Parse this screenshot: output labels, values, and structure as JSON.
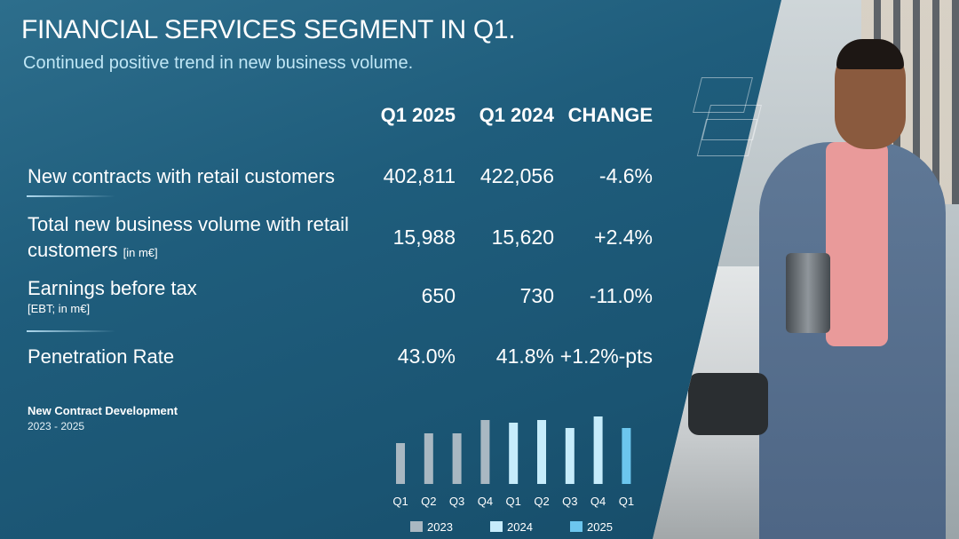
{
  "header": {
    "title": "FINANCIAL SERVICES SEGMENT IN Q1.",
    "subtitle": "Continued positive trend in new business volume."
  },
  "table": {
    "columns": [
      "Q1 2025",
      "Q1 2024",
      "CHANGE"
    ],
    "rows": [
      {
        "label": "New contracts with retail  customers",
        "label2": "",
        "unit": "",
        "values": [
          "402,811",
          "422,056",
          "-4.6%"
        ]
      },
      {
        "label": "Total new business volume with retail",
        "label2": "customers",
        "unit": "[in m€]",
        "values": [
          "15,988",
          "15,620",
          "+2.4%"
        ]
      },
      {
        "label": "Earnings before tax",
        "label2": "",
        "unit": "[EBT; in m€]",
        "values": [
          "650",
          "730",
          "-11.0%"
        ]
      },
      {
        "label": "Penetration Rate",
        "label2": "",
        "unit": "",
        "values": [
          "43.0%",
          "41.8%",
          "+1.2%-pts"
        ]
      }
    ]
  },
  "chart_title": "New Contract Development",
  "chart_range": "2023 - 2025",
  "chart_data": {
    "type": "bar",
    "categories": [
      "Q1",
      "Q2",
      "Q3",
      "Q4",
      "Q1",
      "Q2",
      "Q3",
      "Q4",
      "Q1"
    ],
    "values": [
      46,
      57,
      57,
      72,
      69,
      72,
      63,
      76,
      63
    ],
    "years": [
      "2023",
      "2023",
      "2023",
      "2023",
      "2024",
      "2024",
      "2024",
      "2024",
      "2025"
    ],
    "legend": [
      {
        "name": "2023",
        "color": "#a9b8c2"
      },
      {
        "name": "2024",
        "color": "#c6ecfb"
      },
      {
        "name": "2025",
        "color": "#6cc6ee"
      }
    ],
    "ylim": [
      0,
      100
    ],
    "grid": false,
    "legend_placement": "bottom"
  }
}
